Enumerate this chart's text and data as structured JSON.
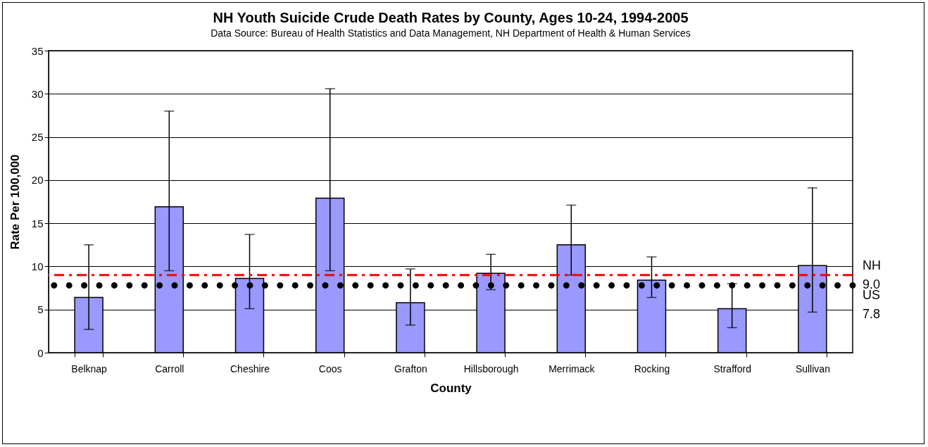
{
  "chart_data": {
    "type": "bar",
    "title": "NH Youth Suicide Crude Death Rates by County, Ages 10-24, 1994-2005",
    "subtitle": "Data Source: Bureau of Health Statistics and Data Management, NH Department of Health & Human Services",
    "xlabel": "County",
    "ylabel": "Rate Per 100,000",
    "categories": [
      "Belknap",
      "Carroll",
      "Cheshire",
      "Coos",
      "Grafton",
      "Hillsborough",
      "Merrimack",
      "Rocking",
      "Strafford",
      "Sullivan"
    ],
    "values": [
      6.4,
      16.9,
      8.6,
      17.9,
      5.8,
      9.2,
      12.5,
      8.4,
      5.1,
      10.1
    ],
    "errors": [
      [
        2.7,
        12.5
      ],
      [
        9.5,
        28.0
      ],
      [
        5.1,
        13.7
      ],
      [
        9.5,
        30.6
      ],
      [
        3.2,
        9.7
      ],
      [
        7.3,
        11.4
      ],
      [
        9.0,
        17.1
      ],
      [
        6.4,
        11.1
      ],
      [
        2.9,
        8.0
      ],
      [
        4.7,
        19.1
      ]
    ],
    "color": "#9999ff",
    "ylim": [
      0,
      35
    ],
    "yticks": [
      0,
      5,
      10,
      15,
      20,
      25,
      30,
      35
    ],
    "grid": "y",
    "ref_lines": [
      {
        "axis": "y",
        "value": 9.0,
        "label": "NH 9.0",
        "color": "#ff0000",
        "line_style": "dashed"
      },
      {
        "axis": "y",
        "value": 7.8,
        "label": "US 7.8",
        "color": "#000000",
        "line_style": "dotted"
      }
    ]
  }
}
